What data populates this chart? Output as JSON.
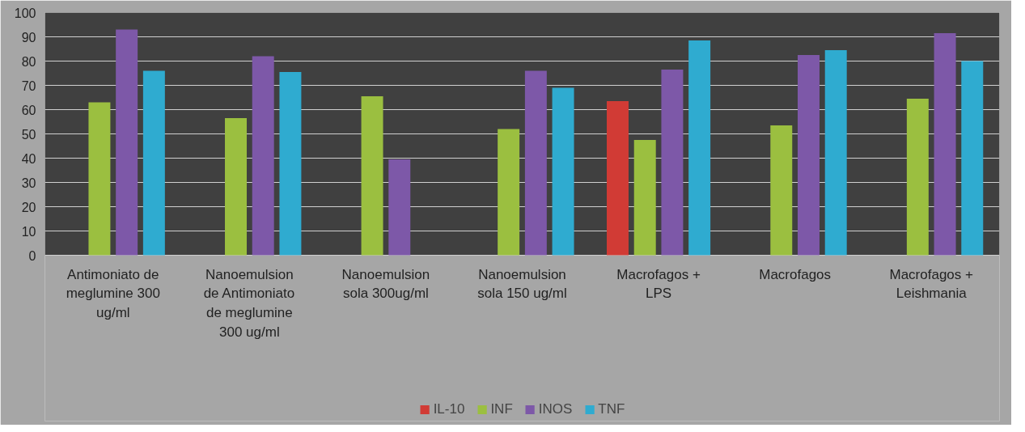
{
  "chart_data": {
    "type": "bar",
    "categories": [
      "Antimoniato de meglumine 300 ug/ml",
      "Nanoemulsion de Antimoniato de meglumine 300 ug/ml",
      "Nanoemulsion sola 300ug/ml",
      "Nanoemulsion sola 150 ug/ml",
      "Macrofagos + LPS",
      "Macrofagos",
      "Macrofagos + Leishmania"
    ],
    "series": [
      {
        "name": "IL-10",
        "color": "#d13b35",
        "values": [
          null,
          null,
          null,
          null,
          63.5,
          null,
          null
        ]
      },
      {
        "name": "INF",
        "color": "#9bbf40",
        "values": [
          63,
          56.5,
          65.5,
          52,
          47.5,
          53.5,
          64.5
        ]
      },
      {
        "name": "INOS",
        "color": "#7d58a8",
        "values": [
          93,
          82,
          39.5,
          76,
          76.5,
          82.5,
          91.5
        ]
      },
      {
        "name": "TNF",
        "color": "#2fabd0",
        "values": [
          76,
          75.5,
          null,
          69,
          88.5,
          84.5,
          80
        ]
      }
    ],
    "ylim": [
      0,
      100
    ],
    "yticks": [
      0,
      10,
      20,
      30,
      40,
      50,
      60,
      70,
      80,
      90,
      100
    ],
    "grid": "y",
    "legend": "bottom"
  }
}
